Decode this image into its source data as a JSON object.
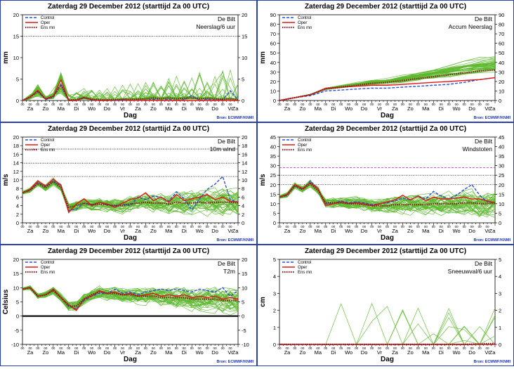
{
  "colors": {
    "frame": "#2a3fb0",
    "control": "#2f4fd8",
    "oper": "#e01818",
    "ensmn": "#8a1a1a",
    "members": "#5cb82e",
    "source": "#1a2fd0",
    "dotted_level": "#000000",
    "magenta_level": "#c020c0"
  },
  "legend": {
    "control": "Control",
    "oper": "Oper",
    "ensmn": "Ens mn"
  },
  "source": "Bron: ECMWF/KNMI",
  "xlabel": "Dag",
  "days": [
    "Za",
    "Zo",
    "Ma",
    "Di",
    "Wo",
    "Do",
    "Vr",
    "Za",
    "Zo",
    "Ma",
    "Di",
    "Wo",
    "Do",
    "Vr",
    "Za"
  ],
  "hour_tick_label": "00",
  "chart_data": [
    {
      "type": "line",
      "title": "Zaterdag  29 December  2012   (starttijd   Za 00 UTC)",
      "station": "De Bilt",
      "variable": "Neerslag/6 uur",
      "ylabel": "mm",
      "ylim": [
        0,
        20
      ],
      "yticks": [
        "0",
        "5",
        "10",
        "15",
        "20"
      ],
      "dotted_levels": [
        15
      ],
      "x_unit": "days since start",
      "x": [
        0.0,
        0.5,
        1.0,
        1.5,
        2.0,
        2.5,
        3.0,
        3.5,
        4.0,
        4.5,
        5.0,
        5.5,
        6.0,
        6.5,
        7.0,
        7.5,
        8.0,
        8.5,
        9.0,
        9.5,
        10.0,
        10.5,
        11.0,
        11.5,
        12.0,
        12.5,
        13.0,
        13.5,
        14.0
      ],
      "series": [
        {
          "name": "Control",
          "values": [
            0.0,
            0.9,
            2.2,
            0.2,
            0.8,
            3.8,
            0.0,
            0.0,
            0.8,
            0.2,
            0.0,
            0.0,
            0.0,
            0.1,
            0.0,
            0.1,
            0.0,
            0.3,
            0.0,
            0.3,
            0.0,
            0.2,
            1.2,
            0.0,
            0.3,
            0.1,
            0.2,
            2.3,
            0.1
          ]
        },
        {
          "name": "Oper",
          "values": [
            0.0,
            0.8,
            2.4,
            0.3,
            1.0,
            4.8,
            0.0,
            0.0,
            0.7,
            0.2,
            0.0,
            0.0,
            0.1,
            0.2,
            0.0,
            0.1,
            0.0,
            0.1,
            0.0,
            0.0,
            0.0,
            0.0,
            0.0,
            0.0,
            0.0,
            0.0,
            0.0,
            0.0,
            0.0
          ]
        },
        {
          "name": "Ens mn",
          "values": [
            0.0,
            0.8,
            2.1,
            0.4,
            1.0,
            3.6,
            0.1,
            0.2,
            0.6,
            0.3,
            0.2,
            0.2,
            0.2,
            0.3,
            0.3,
            0.3,
            0.4,
            0.6,
            0.4,
            0.6,
            0.4,
            0.5,
            0.6,
            0.4,
            0.5,
            0.4,
            0.3,
            0.4,
            0.2
          ]
        }
      ]
    },
    {
      "type": "line",
      "title": "Zaterdag  29 December  2012   (starttijd   Za 00 UTC)",
      "station": "De Bilt",
      "variable": "Accum Neerslag",
      "ylabel": "mm",
      "ylim": [
        0,
        90
      ],
      "yticks": [
        "0",
        "10",
        "20",
        "30",
        "40",
        "50",
        "60",
        "70",
        "80",
        "90"
      ],
      "dotted_levels": [],
      "x_unit": "days since start",
      "x": [
        0,
        1,
        2,
        3,
        4,
        5,
        6,
        7,
        8,
        9,
        10,
        11,
        12,
        13,
        14
      ],
      "series": [
        {
          "name": "Control",
          "values": [
            0,
            3,
            5,
            10,
            11,
            12,
            13,
            13,
            14,
            15,
            16,
            17,
            19,
            22,
            24
          ]
        },
        {
          "name": "Oper",
          "values": [
            0,
            3,
            6,
            13,
            14,
            15,
            16,
            16,
            17,
            18,
            19,
            20,
            21,
            22,
            24
          ]
        },
        {
          "name": "Ens mn",
          "values": [
            0,
            3,
            6,
            12,
            14,
            16,
            18,
            19,
            21,
            23,
            25,
            27,
            29,
            31,
            32
          ]
        }
      ]
    },
    {
      "type": "line",
      "title": "Zaterdag  29 December  2012   (starttijd   Za 00 UTC)",
      "station": "De Bilt",
      "variable": "10m wind",
      "ylabel": "m/s",
      "ylim": [
        0,
        20
      ],
      "yticks": [
        "0",
        "2",
        "4",
        "6",
        "8",
        "10",
        "12",
        "14",
        "16",
        "18",
        "20"
      ],
      "dotted_levels": [
        10.8,
        13.9,
        17.2
      ],
      "x_unit": "days since start",
      "x": [
        0.0,
        0.5,
        1.0,
        1.5,
        2.0,
        2.5,
        3.0,
        3.5,
        4.0,
        4.5,
        5.0,
        5.5,
        6.0,
        6.5,
        7.0,
        7.5,
        8.0,
        8.5,
        9.0,
        9.5,
        10.0,
        10.5,
        11.0,
        11.5,
        12.0,
        12.5,
        13.0,
        13.5,
        14.0
      ],
      "series": [
        {
          "name": "Control",
          "values": [
            7,
            7.6,
            9.4,
            8.4,
            9.8,
            8.6,
            2.8,
            3.2,
            4.6,
            4.2,
            4.8,
            4.2,
            4.0,
            4.4,
            4.0,
            6.0,
            5.4,
            6.2,
            6.0,
            5.0,
            7.2,
            5.6,
            3.0,
            5.6,
            7.8,
            9.0,
            10.8,
            5.4,
            4.8
          ]
        },
        {
          "name": "Oper",
          "values": [
            7,
            7.8,
            9.8,
            8.6,
            10.2,
            8.8,
            2.4,
            4.4,
            5.6,
            4.0,
            4.8,
            4.4,
            3.6,
            4.6,
            5.4,
            5.8,
            7.0,
            5.2,
            6.0,
            4.8,
            6.6,
            5.2,
            5.6,
            6.0,
            6.6,
            5.4,
            6.0,
            5.0,
            4.8
          ]
        },
        {
          "name": "Ens mn",
          "values": [
            7,
            7.6,
            9.2,
            8.2,
            9.6,
            8.2,
            3.6,
            4.0,
            4.6,
            4.2,
            4.4,
            4.2,
            4.0,
            4.0,
            4.4,
            4.6,
            4.8,
            4.6,
            4.6,
            4.4,
            4.8,
            4.6,
            4.6,
            4.8,
            4.6,
            4.8,
            4.8,
            4.8,
            4.6
          ]
        }
      ]
    },
    {
      "type": "line",
      "title": "Zaterdag  29 December  2012   (starttijd   Za 00 UTC)",
      "station": "De Bilt",
      "variable": "Windstoten",
      "ylabel": "m/s",
      "ylim": [
        0,
        45
      ],
      "yticks": [
        "0",
        "5",
        "10",
        "15",
        "20",
        "25",
        "30",
        "35",
        "40",
        "45"
      ],
      "dotted_levels": [
        20,
        25
      ],
      "magenta_levels": [
        28.9
      ],
      "x_unit": "days since start",
      "x": [
        0.0,
        0.5,
        1.0,
        1.5,
        2.0,
        2.5,
        3.0,
        3.5,
        4.0,
        4.5,
        5.0,
        5.5,
        6.0,
        6.5,
        7.0,
        7.5,
        8.0,
        8.5,
        9.0,
        9.5,
        10.0,
        10.5,
        11.0,
        11.5,
        12.0,
        12.5,
        13.0,
        13.5,
        14.0
      ],
      "series": [
        {
          "name": "Control",
          "values": [
            13.5,
            14.5,
            19.5,
            17.5,
            22.0,
            18.0,
            10.0,
            10.0,
            11.5,
            10.5,
            11.0,
            10.5,
            9.5,
            10.0,
            10.5,
            11.5,
            13.0,
            12.0,
            14.0,
            12.5,
            16.5,
            14.0,
            12.5,
            14.5,
            17.5,
            20.0,
            14.5,
            11.0,
            10.5
          ]
        },
        {
          "name": "Oper",
          "values": [
            13.5,
            15.0,
            20.0,
            18.0,
            21.0,
            18.0,
            9.0,
            10.0,
            11.0,
            10.0,
            10.5,
            10.0,
            9.0,
            10.0,
            11.0,
            12.0,
            14.5,
            12.0,
            14.0,
            11.5,
            13.5,
            12.5,
            12.5,
            13.0,
            13.5,
            12.5,
            12.5,
            11.5,
            10.5
          ]
        },
        {
          "name": "Ens mn",
          "values": [
            13.5,
            14.5,
            19.5,
            17.5,
            20.5,
            17.0,
            10.5,
            10.5,
            10.5,
            10.0,
            10.0,
            9.5,
            9.0,
            9.0,
            9.0,
            9.5,
            9.5,
            9.5,
            9.5,
            9.5,
            10.0,
            10.0,
            10.0,
            10.0,
            10.5,
            10.5,
            10.0,
            10.0,
            10.5
          ]
        }
      ]
    },
    {
      "type": "line",
      "title": "Zaterdag  29 December  2012   (starttijd   Za 00 UTC)",
      "station": "De Bilt",
      "variable": "T2m",
      "ylabel": "Celsius",
      "ylim": [
        -10,
        20
      ],
      "yticks": [
        "-10",
        "-5",
        "0",
        "5",
        "10",
        "15",
        "20"
      ],
      "dotted_levels": [],
      "zero_line": true,
      "x_unit": "days since start",
      "x": [
        0.0,
        0.5,
        1.0,
        1.5,
        2.0,
        2.5,
        3.0,
        3.5,
        4.0,
        4.5,
        5.0,
        5.5,
        6.0,
        6.5,
        7.0,
        7.5,
        8.0,
        8.5,
        9.0,
        9.5,
        10.0,
        10.5,
        11.0,
        11.5,
        12.0,
        12.5,
        13.0,
        13.5,
        14.0
      ],
      "series": [
        {
          "name": "Control",
          "values": [
            9.5,
            10.0,
            7.0,
            7.5,
            9.0,
            6.5,
            3.5,
            2.5,
            5.5,
            7.0,
            8.0,
            8.0,
            9.5,
            8.0,
            8.5,
            7.5,
            8.5,
            9.0,
            9.5,
            9.0,
            9.5,
            9.0,
            8.5,
            9.5,
            9.0,
            8.5,
            10.0,
            7.0,
            9.0
          ]
        },
        {
          "name": "Oper",
          "values": [
            9.5,
            10.0,
            7.0,
            7.5,
            9.5,
            6.5,
            4.0,
            2.0,
            6.0,
            7.0,
            9.0,
            8.0,
            8.5,
            7.5,
            8.0,
            7.0,
            7.5,
            8.0,
            7.0,
            7.5,
            7.0,
            7.5,
            6.5,
            7.0,
            6.5,
            7.0,
            6.0,
            6.5,
            6.0
          ]
        },
        {
          "name": "Ens mn",
          "values": [
            9.5,
            10.0,
            7.0,
            7.5,
            9.0,
            6.5,
            3.5,
            3.5,
            6.0,
            7.5,
            8.5,
            8.0,
            8.0,
            7.5,
            7.5,
            7.0,
            7.0,
            7.0,
            6.5,
            6.5,
            6.5,
            6.5,
            6.0,
            6.0,
            6.0,
            6.0,
            5.5,
            5.5,
            5.5
          ]
        }
      ]
    },
    {
      "type": "line",
      "title": "Zaterdag  29 December  2012   (starttijd   Za 00 UTC)",
      "station": "De Bilt",
      "variable": "Sneeuwval/6 uur",
      "ylabel": "cm",
      "ylim": [
        0,
        5
      ],
      "yticks": [
        "0",
        "1",
        "2",
        "3",
        "4",
        "5"
      ],
      "dotted_levels": [],
      "x_unit": "days since start",
      "x": [
        0,
        1,
        2,
        3,
        4,
        5,
        6,
        7,
        8,
        9,
        10,
        11,
        12,
        13,
        14
      ],
      "series": [
        {
          "name": "Control",
          "values": [
            0,
            0,
            0,
            0,
            0,
            0,
            0,
            0,
            0,
            0,
            0,
            0,
            0,
            0,
            0
          ]
        },
        {
          "name": "Oper",
          "values": [
            0,
            0,
            0,
            0,
            0,
            0,
            0,
            0,
            0,
            0,
            0,
            0,
            0,
            0,
            0
          ]
        },
        {
          "name": "Ens mn",
          "values": [
            0,
            0,
            0,
            0,
            0,
            0,
            0,
            0,
            0,
            0,
            0,
            0,
            0,
            0.03,
            0.05
          ]
        }
      ]
    }
  ]
}
